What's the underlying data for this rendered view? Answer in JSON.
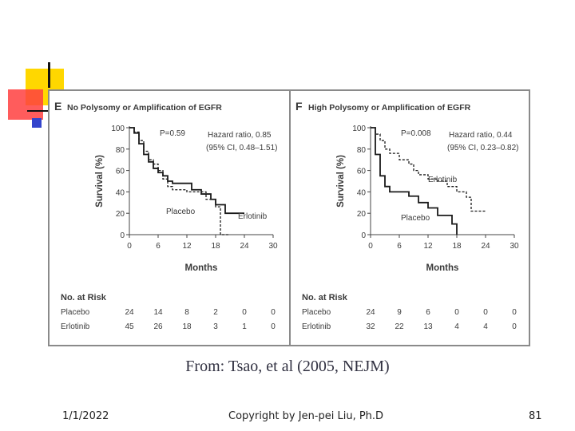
{
  "slide": {
    "caption": "From: Tsao, et al (2005, NEJM)",
    "footer_date": "1/1/2022",
    "footer_copyright": "Copyright by Jen-pei Liu, Ph.D",
    "page_number": "81",
    "accent_colors": {
      "yellow": "#ffd700",
      "red": "#ff3333",
      "blue": "#3344cc",
      "line": "#8a8a8a"
    }
  },
  "chart_data": [
    {
      "type": "line",
      "panel_letter": "E",
      "title": "No Polysomy or Amplification of EGFR",
      "xlabel": "Months",
      "ylabel": "Survival (%)",
      "xlim": [
        0,
        30
      ],
      "ylim": [
        0,
        100
      ],
      "x_ticks": [
        "0",
        "6",
        "12",
        "18",
        "24",
        "30"
      ],
      "y_ticks": [
        "0",
        "20",
        "40",
        "60",
        "80",
        "100"
      ],
      "p_value": "P=0.59",
      "hazard_ratio": "Hazard ratio, 0.85",
      "ci": "(95% CI, 0.48–1.51)",
      "series": [
        {
          "name": "Placebo",
          "dash": false,
          "label": "Placebo",
          "points": [
            [
              0,
              100
            ],
            [
              1,
              95
            ],
            [
              2,
              85
            ],
            [
              3,
              75
            ],
            [
              4,
              68
            ],
            [
              5,
              62
            ],
            [
              6,
              58
            ],
            [
              7,
              55
            ],
            [
              8,
              50
            ],
            [
              9,
              48
            ],
            [
              12,
              48
            ],
            [
              13,
              42
            ],
            [
              15,
              38
            ],
            [
              17,
              33
            ],
            [
              18,
              28
            ],
            [
              20,
              20
            ],
            [
              24,
              20
            ]
          ]
        },
        {
          "name": "Erlotinib",
          "dash": true,
          "label": "Erlotinib",
          "points": [
            [
              0,
              100
            ],
            [
              1,
              96
            ],
            [
              2,
              88
            ],
            [
              3,
              78
            ],
            [
              4,
              70
            ],
            [
              5,
              66
            ],
            [
              6,
              60
            ],
            [
              7,
              52
            ],
            [
              8,
              45
            ],
            [
              9,
              42
            ],
            [
              12,
              40
            ],
            [
              14,
              40
            ],
            [
              16,
              33
            ],
            [
              18,
              26
            ],
            [
              19,
              0
            ],
            [
              21,
              0
            ]
          ]
        }
      ],
      "risk_table": {
        "header": "No. at Risk",
        "rows": [
          {
            "label": "Placebo",
            "values": [
              "24",
              "14",
              "8",
              "2",
              "0",
              "0"
            ]
          },
          {
            "label": "Erlotinib",
            "values": [
              "45",
              "26",
              "18",
              "3",
              "1",
              "0"
            ]
          }
        ]
      }
    },
    {
      "type": "line",
      "panel_letter": "F",
      "title": "High Polysomy or Amplification of EGFR",
      "xlabel": "Months",
      "ylabel": "Survival (%)",
      "xlim": [
        0,
        30
      ],
      "ylim": [
        0,
        100
      ],
      "x_ticks": [
        "0",
        "6",
        "12",
        "18",
        "24",
        "30"
      ],
      "y_ticks": [
        "0",
        "20",
        "40",
        "60",
        "80",
        "100"
      ],
      "p_value": "P=0.008",
      "hazard_ratio": "Hazard ratio, 0.44",
      "ci": "(95% CI, 0.23–0.82)",
      "series": [
        {
          "name": "Erlotinib",
          "dash": true,
          "label": "Erlotinib",
          "points": [
            [
              0,
              100
            ],
            [
              1,
              94
            ],
            [
              2,
              88
            ],
            [
              3,
              80
            ],
            [
              4,
              76
            ],
            [
              6,
              70
            ],
            [
              8,
              66
            ],
            [
              9,
              60
            ],
            [
              10,
              56
            ],
            [
              12,
              52
            ],
            [
              14,
              50
            ],
            [
              16,
              45
            ],
            [
              18,
              40
            ],
            [
              20,
              35
            ],
            [
              21,
              22
            ],
            [
              24,
              22
            ]
          ]
        },
        {
          "name": "Placebo",
          "dash": false,
          "label": "Placebo",
          "points": [
            [
              0,
              100
            ],
            [
              1,
              75
            ],
            [
              2,
              55
            ],
            [
              3,
              45
            ],
            [
              4,
              40
            ],
            [
              8,
              36
            ],
            [
              10,
              30
            ],
            [
              12,
              25
            ],
            [
              14,
              18
            ],
            [
              17,
              10
            ],
            [
              18,
              0
            ]
          ]
        }
      ],
      "risk_table": {
        "header": "No. at Risk",
        "rows": [
          {
            "label": "Placebo",
            "values": [
              "24",
              "9",
              "6",
              "0",
              "0",
              "0"
            ]
          },
          {
            "label": "Erlotinib",
            "values": [
              "32",
              "22",
              "13",
              "4",
              "4",
              "0"
            ]
          }
        ]
      }
    }
  ]
}
